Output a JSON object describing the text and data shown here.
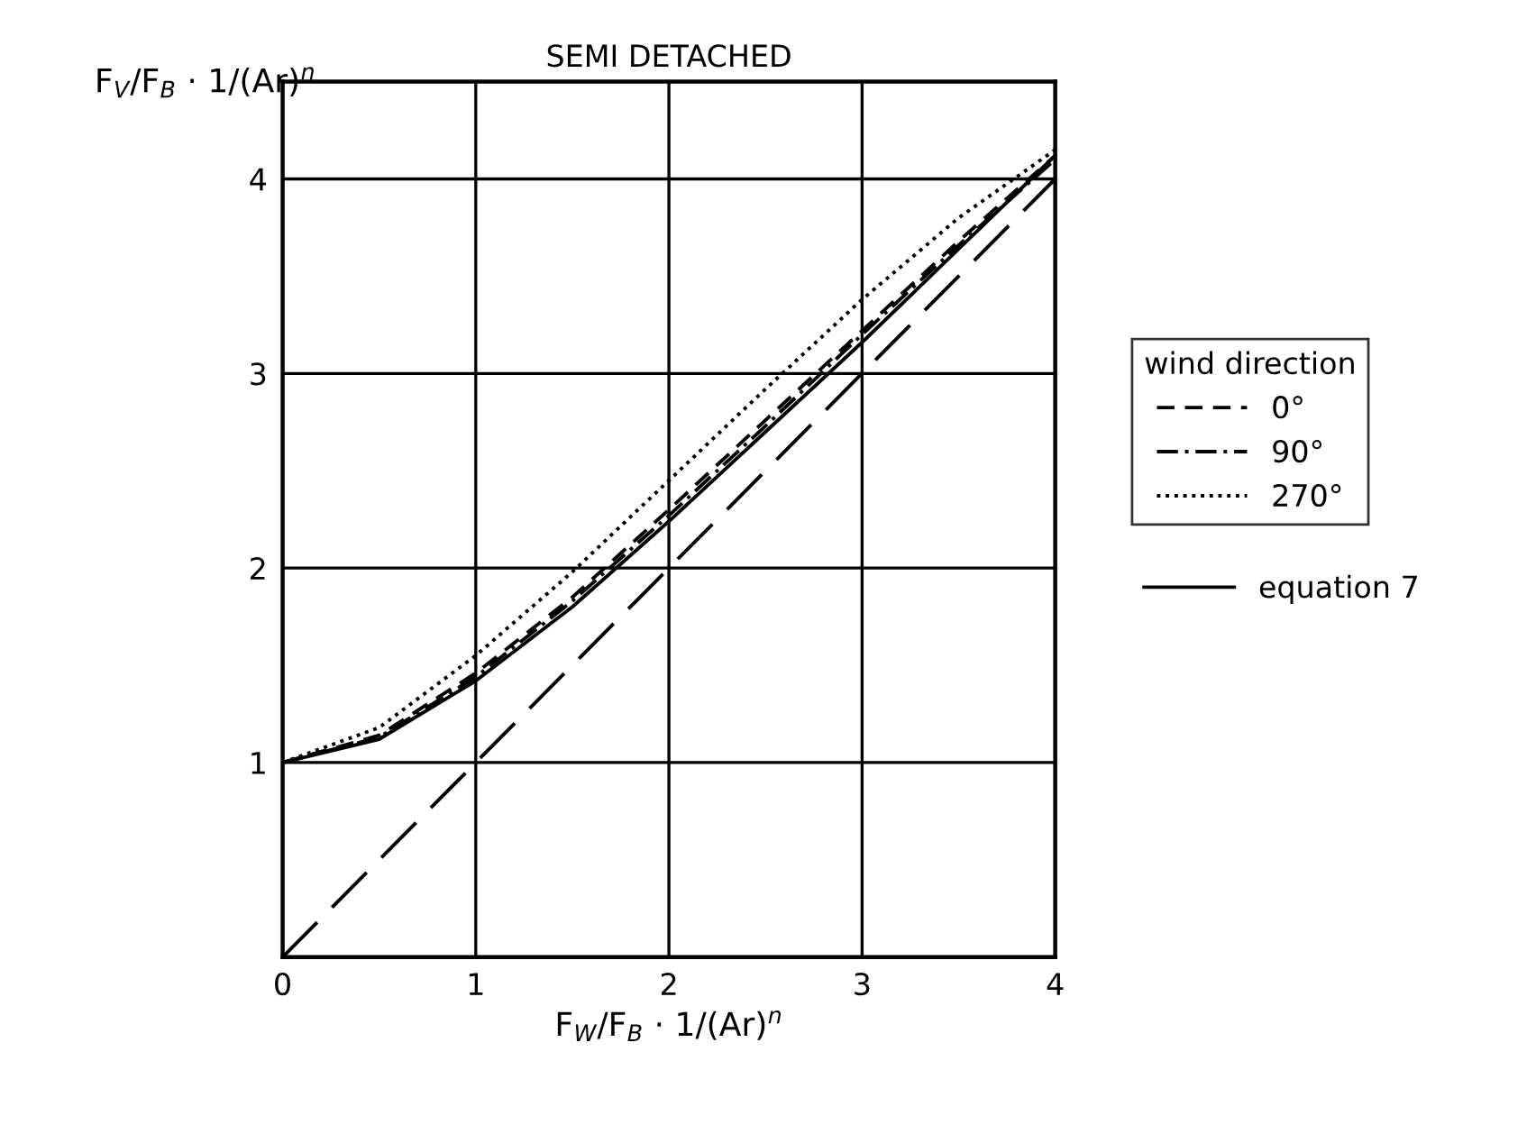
{
  "chart_data": {
    "type": "line",
    "title": "SEMI DETACHED",
    "xlabel": "F$_{W}$/F$_{B}$ · 1/(Ar)$^{n}$",
    "ylabel": "F$_{V}$/F$_{B}$ · 1/(Ar)$^{n}$",
    "legend_title": "wind direction",
    "legend": "right",
    "grid": true,
    "xlim": [
      0,
      4
    ],
    "ylim": [
      0,
      4.5
    ],
    "xticks": [
      0,
      1,
      2,
      3,
      4
    ],
    "yticks": [
      {
        "value": 0,
        "label": null
      },
      1,
      2,
      3,
      4
    ],
    "x": [
      0,
      0.5,
      1,
      1.5,
      2,
      2.5,
      3,
      3.5,
      4
    ],
    "series": [
      {
        "name": "0°",
        "color": "#000000",
        "line_style": "dashed",
        "values": [
          1,
          1.14,
          1.46,
          1.85,
          2.3,
          2.76,
          3.22,
          3.68,
          4.12
        ]
      },
      {
        "name": "90°",
        "color": "#000000",
        "line_style": "dashdot",
        "values": [
          1,
          1.13,
          1.44,
          1.83,
          2.27,
          2.73,
          3.2,
          3.66,
          4.1
        ]
      },
      {
        "name": "270°",
        "color": "#000000",
        "line_style": "dotted",
        "values": [
          1,
          1.18,
          1.55,
          1.98,
          2.45,
          2.92,
          3.38,
          3.8,
          4.15
        ]
      },
      {
        "name": "equation 7",
        "color": "#000000",
        "line_style": "solid",
        "values": [
          1,
          1.12,
          1.42,
          1.8,
          2.24,
          2.7,
          3.16,
          3.64,
          4.12
        ]
      },
      {
        "color": "#000000",
        "line_style": "longdash",
        "x": [
          0,
          4
        ],
        "values": [
          0,
          4
        ]
      }
    ]
  }
}
